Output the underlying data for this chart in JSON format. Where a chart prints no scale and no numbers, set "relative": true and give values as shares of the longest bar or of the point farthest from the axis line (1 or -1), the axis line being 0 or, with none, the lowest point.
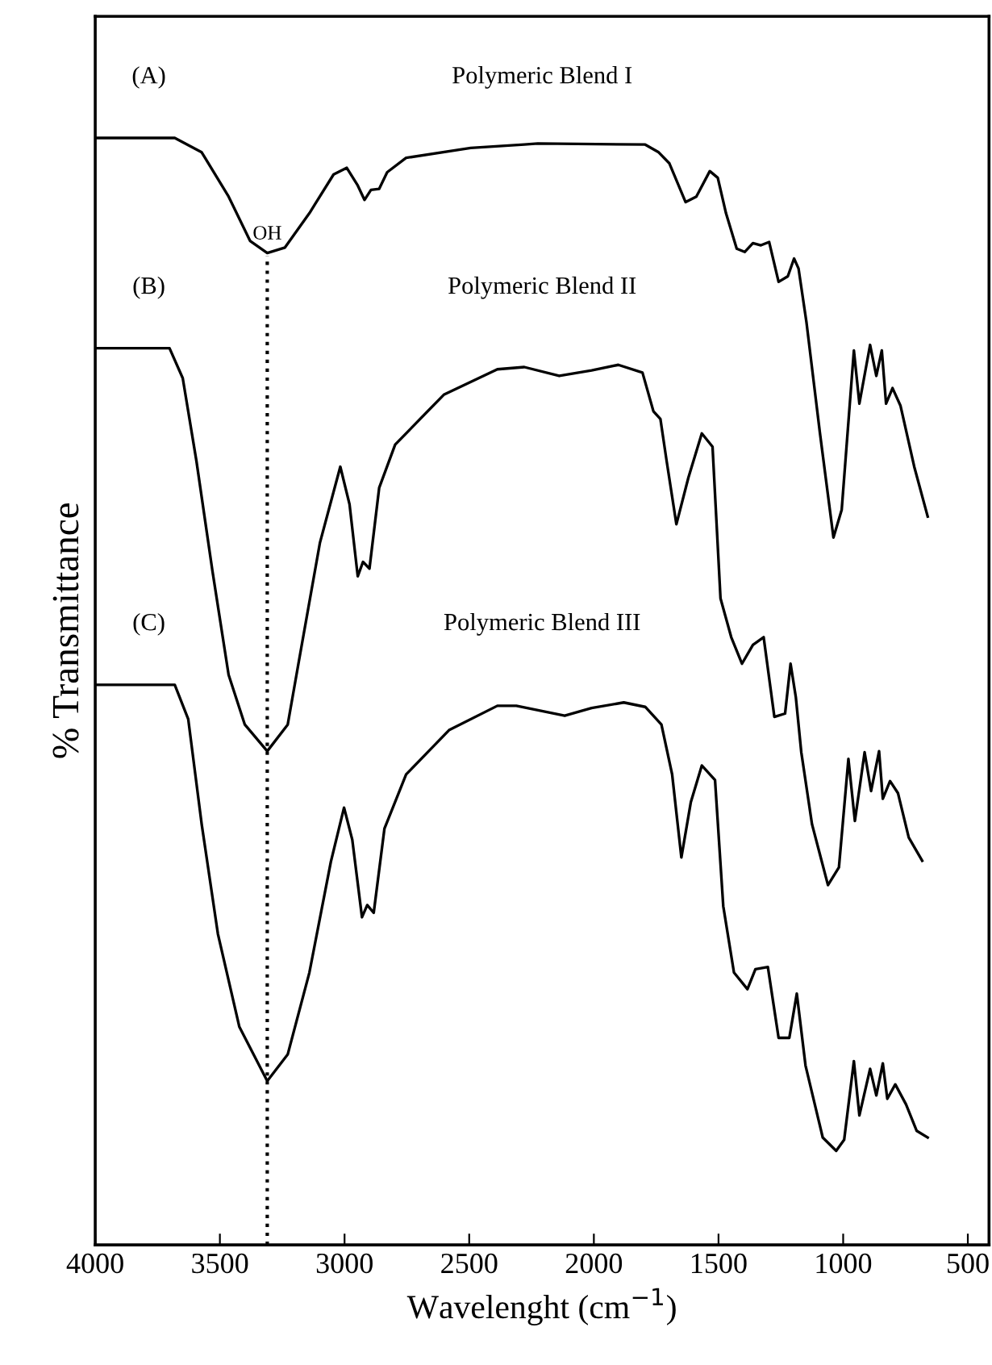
{
  "chart_data": {
    "type": "line",
    "relative": true,
    "xlabel": "Wavelenght (cm$^{−1}$)",
    "ylabel": "% Transmittance",
    "xlim": [
      4000,
      415
    ],
    "xticks": [
      4000,
      3500,
      3000,
      2500,
      2000,
      1500,
      1000,
      500
    ],
    "tick_labels": "x",
    "grid": false,
    "legend": false,
    "marker": "none",
    "line_style": "solid",
    "ref_lines": [
      {
        "axis": "x",
        "value": 3310,
        "label": "OH",
        "line_style": "dotted",
        "color": "#000000"
      }
    ],
    "annotations": [
      "(A)",
      "(B)",
      "(C)"
    ],
    "series": [
      {
        "name": "Polymeric Blend I",
        "color": "#000000",
        "x": [
          3994,
          3681,
          3573,
          3465,
          3379,
          3310,
          3239,
          3141,
          3044,
          2991,
          2947,
          2920,
          2894,
          2861,
          2829,
          2753,
          2494,
          2279,
          2225,
          1794,
          1740,
          1697,
          1632,
          1589,
          1535,
          1503,
          1470,
          1427,
          1395,
          1362,
          1330,
          1297,
          1259,
          1222,
          1197,
          1179,
          1147,
          1093,
          1039,
          1006,
          957,
          935,
          892,
          867,
          845,
          828,
          802,
          770,
          715,
          661
        ],
        "values": [
          1.0,
          1.0,
          0.987,
          0.947,
          0.907,
          0.896,
          0.901,
          0.932,
          0.967,
          0.973,
          0.957,
          0.944,
          0.953,
          0.954,
          0.969,
          0.982,
          0.991,
          0.994,
          0.995,
          0.994,
          0.987,
          0.977,
          0.942,
          0.947,
          0.97,
          0.964,
          0.932,
          0.9,
          0.897,
          0.905,
          0.903,
          0.906,
          0.87,
          0.875,
          0.891,
          0.882,
          0.833,
          0.733,
          0.639,
          0.664,
          0.808,
          0.76,
          0.813,
          0.785,
          0.808,
          0.76,
          0.774,
          0.758,
          0.703,
          0.658
        ]
      },
      {
        "name": "Polymeric Blend II",
        "color": "#000000",
        "x": [
          3994,
          3702,
          3649,
          3594,
          3530,
          3465,
          3400,
          3310,
          3228,
          3185,
          3099,
          3017,
          2980,
          2947,
          2926,
          2900,
          2861,
          2797,
          2602,
          2387,
          2279,
          2139,
          2009,
          1902,
          1805,
          1761,
          1733,
          1708,
          1669,
          1621,
          1567,
          1524,
          1492,
          1449,
          1406,
          1362,
          1319,
          1276,
          1233,
          1211,
          1190,
          1168,
          1125,
          1061,
          1017,
          979,
          953,
          914,
          888,
          856,
          841,
          812,
          780,
          737,
          683
        ],
        "values": [
          0.81,
          0.81,
          0.783,
          0.708,
          0.609,
          0.515,
          0.47,
          0.446,
          0.47,
          0.525,
          0.634,
          0.703,
          0.669,
          0.604,
          0.617,
          0.611,
          0.684,
          0.723,
          0.768,
          0.791,
          0.793,
          0.785,
          0.79,
          0.795,
          0.788,
          0.753,
          0.746,
          0.708,
          0.651,
          0.693,
          0.733,
          0.721,
          0.584,
          0.549,
          0.525,
          0.542,
          0.549,
          0.477,
          0.48,
          0.525,
          0.495,
          0.445,
          0.38,
          0.325,
          0.341,
          0.439,
          0.383,
          0.445,
          0.41,
          0.446,
          0.403,
          0.419,
          0.408,
          0.368,
          0.347
        ]
      },
      {
        "name": "Polymeric Blend III",
        "color": "#000000",
        "x": [
          3994,
          3681,
          3627,
          3573,
          3508,
          3422,
          3310,
          3228,
          3141,
          3055,
          3002,
          2969,
          2930,
          2909,
          2883,
          2840,
          2753,
          2581,
          2387,
          2311,
          2117,
          2009,
          1880,
          1794,
          1729,
          1686,
          1649,
          1611,
          1567,
          1514,
          1481,
          1438,
          1384,
          1352,
          1302,
          1259,
          1216,
          1186,
          1151,
          1082,
          1028,
          996,
          957,
          935,
          892,
          867,
          841,
          823,
          791,
          748,
          705,
          661
        ],
        "values": [
          0.506,
          0.506,
          0.475,
          0.38,
          0.281,
          0.197,
          0.148,
          0.172,
          0.246,
          0.346,
          0.395,
          0.366,
          0.296,
          0.307,
          0.3,
          0.376,
          0.425,
          0.465,
          0.487,
          0.487,
          0.478,
          0.485,
          0.49,
          0.486,
          0.47,
          0.425,
          0.35,
          0.4,
          0.433,
          0.42,
          0.306,
          0.246,
          0.231,
          0.249,
          0.251,
          0.187,
          0.187,
          0.227,
          0.162,
          0.097,
          0.085,
          0.095,
          0.166,
          0.117,
          0.159,
          0.135,
          0.164,
          0.132,
          0.145,
          0.127,
          0.103,
          0.097
        ]
      }
    ]
  }
}
